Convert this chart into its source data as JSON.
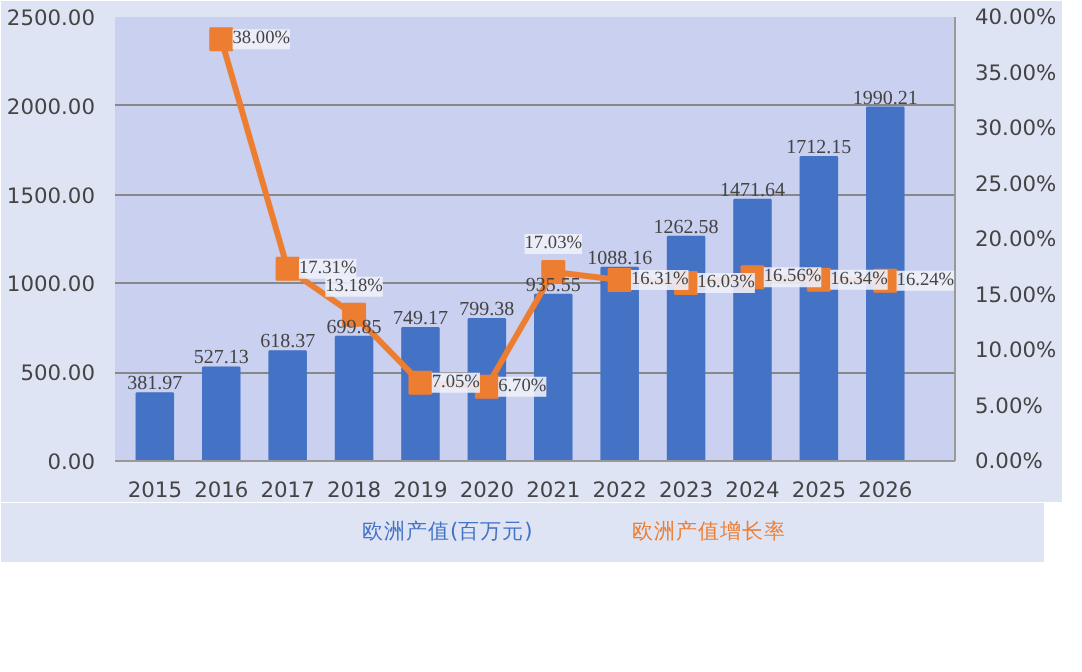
{
  "chart_data": {
    "type": "bar",
    "categories": [
      "2015",
      "2016",
      "2017",
      "2018",
      "2019",
      "2020",
      "2021",
      "2022",
      "2023",
      "2024",
      "2025",
      "2026"
    ],
    "series": [
      {
        "name": "欧洲产值(百万元)",
        "color": "#4472c4",
        "values": [
          381.97,
          527.13,
          618.37,
          699.85,
          749.17,
          799.38,
          935.55,
          1088.16,
          1262.58,
          1471.64,
          1712.15,
          1990.21
        ],
        "value_labels": [
          "381.97",
          "527.13",
          "618.37",
          "699.85",
          "749.17",
          "799.38",
          "935.55",
          "1088.16",
          "1262.58",
          "1471.64",
          "1712.15",
          "1990.21"
        ]
      },
      {
        "name": "欧洲产值增长率",
        "type": "line",
        "axis": "y2",
        "color": "#ed7d31",
        "marker": "square",
        "values": [
          null,
          38.0,
          17.31,
          13.18,
          7.05,
          6.7,
          17.03,
          16.31,
          16.03,
          16.56,
          16.34,
          16.24
        ],
        "value_labels": [
          null,
          "38.00%",
          "17.31%",
          "13.18%",
          "7.05%",
          "6.70%",
          "17.03%",
          "16.31%",
          "16.03%",
          "16.56%",
          "16.34%",
          "16.24%"
        ]
      }
    ],
    "ylim": [
      0,
      2500
    ],
    "yticks": [
      {
        "value": 0,
        "label": "0.00"
      },
      {
        "value": 500,
        "label": "500.00"
      },
      {
        "value": 1000,
        "label": "1000.00"
      },
      {
        "value": 1500,
        "label": "1500.00"
      },
      {
        "value": 2000,
        "label": "2000.00"
      },
      {
        "value": 2500,
        "label": "2500.00"
      }
    ],
    "y2lim": [
      0,
      40
    ],
    "y2ticks": [
      {
        "value": 0,
        "label": "0.00%"
      },
      {
        "value": 5,
        "label": "5.00%"
      },
      {
        "value": 10,
        "label": "10.00%"
      },
      {
        "value": 15,
        "label": "15.00%"
      },
      {
        "value": 20,
        "label": "20.00%"
      },
      {
        "value": 25,
        "label": "25.00%"
      },
      {
        "value": 30,
        "label": "30.00%"
      },
      {
        "value": 35,
        "label": "35.00%"
      },
      {
        "value": 40,
        "label": "40.00%"
      }
    ],
    "grid": "y",
    "legend": "bottom"
  }
}
